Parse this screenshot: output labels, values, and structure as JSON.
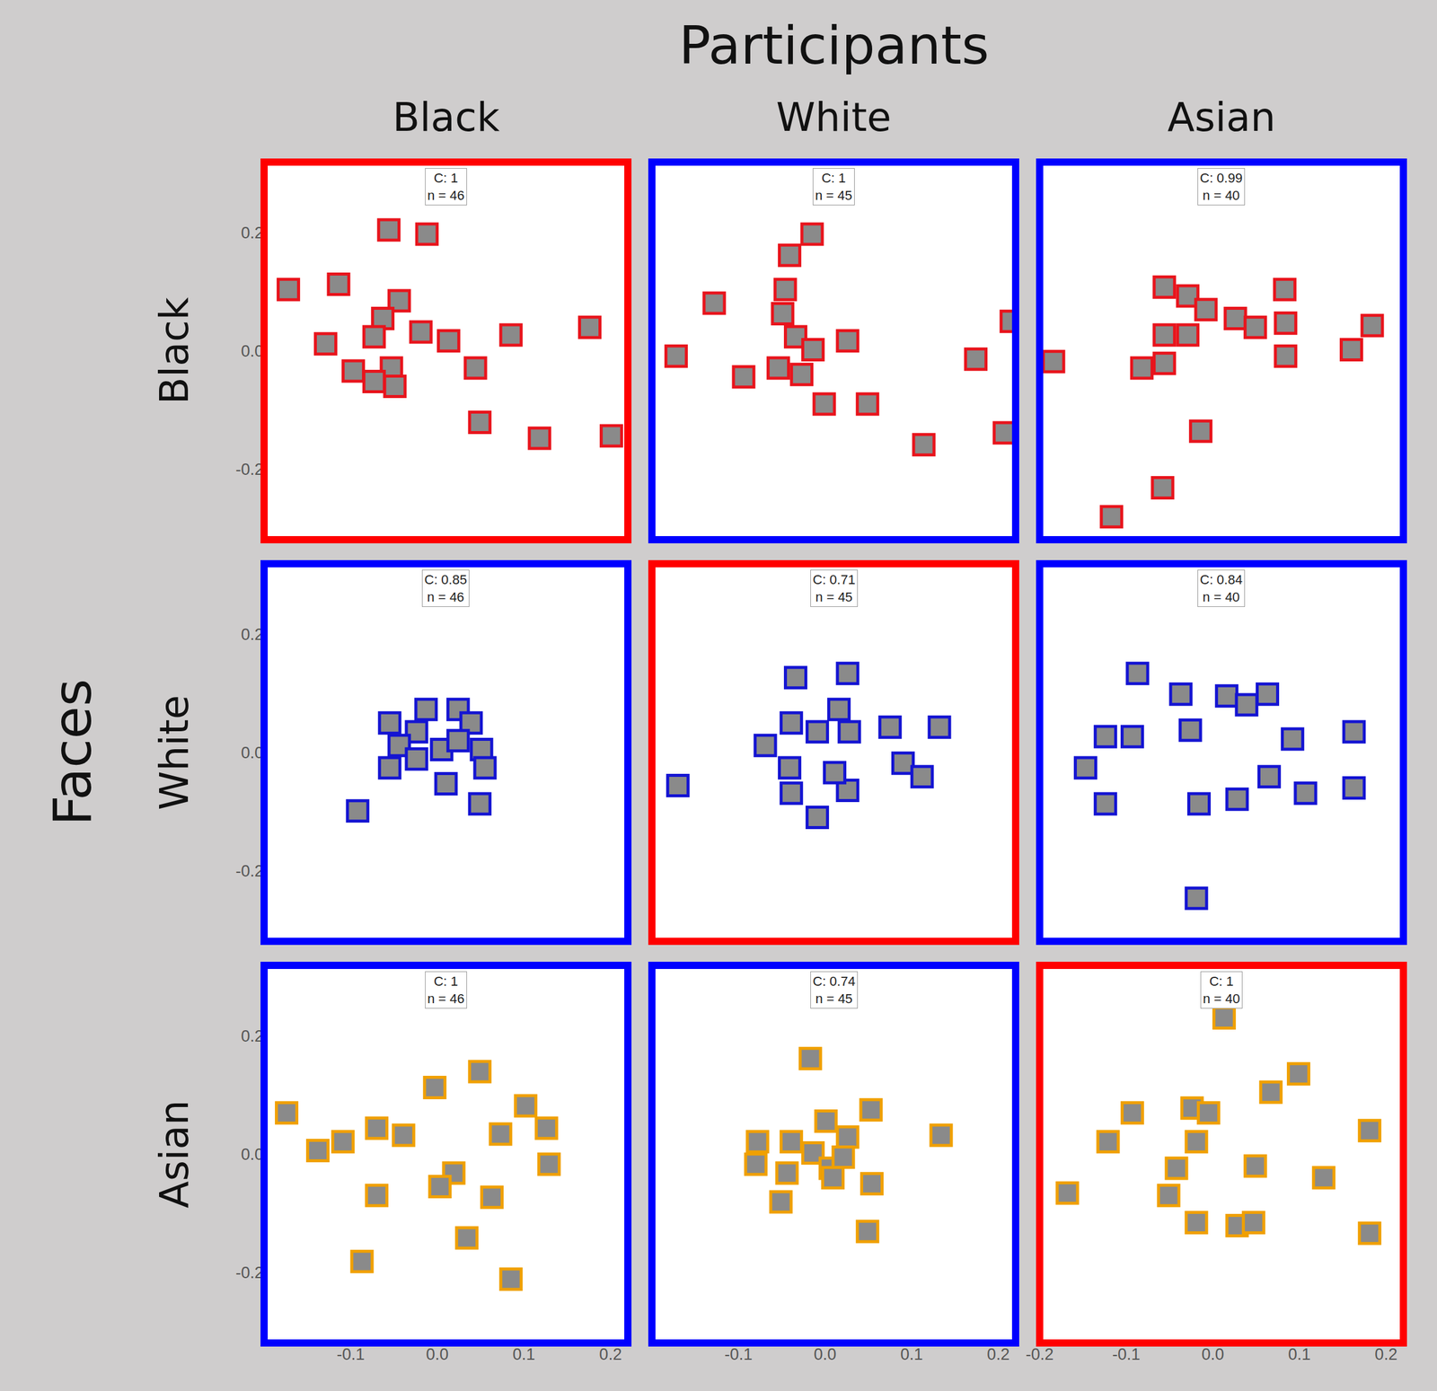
{
  "column_title": "Participants",
  "columns": [
    "Black",
    "White",
    "Asian"
  ],
  "row_title": "Faces",
  "rows": [
    "Black",
    "White",
    "Asian"
  ],
  "chart_data": [
    {
      "type": "scatter",
      "label": [
        "C: 1",
        "n = 46"
      ],
      "color": "#e8141c",
      "marker": "square",
      "xlim": [
        -0.2,
        0.22
      ],
      "ylim": [
        -0.32,
        0.32
      ],
      "xticks": [
        -0.1,
        {
          "value": 0,
          "label": "0.0"
        },
        0.1,
        0.2
      ],
      "yticks": [
        -0.2,
        {
          "value": 0,
          "label": "0.0"
        },
        0.2
      ],
      "tick_labels": "y",
      "x": [
        -0.056,
        -0.012,
        -0.172,
        -0.114,
        -0.044,
        -0.063,
        -0.129,
        -0.073,
        -0.019,
        0.013,
        0.085,
        0.176,
        -0.097,
        -0.053,
        -0.073,
        -0.049,
        0.044,
        0.049,
        0.118,
        0.201
      ],
      "y": [
        0.205,
        0.198,
        0.104,
        0.113,
        0.085,
        0.055,
        0.012,
        0.024,
        0.032,
        0.017,
        0.027,
        0.04,
        -0.034,
        -0.029,
        -0.052,
        -0.06,
        -0.029,
        -0.121,
        -0.148,
        -0.144
      ]
    },
    {
      "type": "scatter",
      "label": [
        "C: 1",
        "n = 45"
      ],
      "color": "#e8141c",
      "marker": "square",
      "xlim": [
        -0.2,
        0.22
      ],
      "ylim": [
        -0.32,
        0.32
      ],
      "xticks": [
        -0.1,
        {
          "value": 0,
          "label": "0.0"
        },
        0.1,
        0.2
      ],
      "yticks": [
        -0.2,
        {
          "value": 0,
          "label": "0.0"
        },
        0.2
      ],
      "tick_labels": false,
      "x": [
        -0.015,
        -0.041,
        -0.128,
        -0.046,
        -0.049,
        -0.034,
        -0.172,
        -0.094,
        -0.054,
        -0.027,
        0.026,
        -0.001,
        0.049,
        0.174,
        0.215,
        0.114,
        0.207,
        -0.014
      ],
      "y": [
        0.198,
        0.162,
        0.081,
        0.104,
        0.063,
        0.024,
        -0.009,
        -0.044,
        -0.029,
        -0.04,
        0.017,
        -0.09,
        -0.09,
        -0.014,
        0.05,
        -0.159,
        -0.139,
        0.002
      ]
    },
    {
      "type": "scatter",
      "label": [
        "C: 0.99",
        "n = 40"
      ],
      "color": "#e8141c",
      "marker": "square",
      "xlim": [
        -0.2,
        0.22
      ],
      "ylim": [
        -0.32,
        0.32
      ],
      "xticks": [
        -0.2,
        -0.1,
        {
          "value": 0,
          "label": "0.0"
        },
        0.1,
        0.2
      ],
      "yticks": [
        -0.2,
        {
          "value": 0,
          "label": "0.0"
        },
        0.2
      ],
      "tick_labels": false,
      "x": [
        -0.056,
        -0.029,
        -0.008,
        0.026,
        0.083,
        0.084,
        0.084,
        -0.056,
        -0.029,
        -0.082,
        -0.056,
        -0.184,
        0.16,
        0.184,
        -0.014,
        -0.058,
        -0.117,
        0.049
      ],
      "y": [
        0.108,
        0.093,
        0.07,
        0.055,
        0.104,
        0.047,
        -0.009,
        0.027,
        0.027,
        -0.029,
        -0.021,
        -0.018,
        0.002,
        0.043,
        -0.136,
        -0.232,
        -0.281,
        0.04
      ]
    },
    {
      "type": "scatter",
      "label": [
        "C: 0.85",
        "n = 46"
      ],
      "color": "#1414d2",
      "marker": "square",
      "xlim": [
        -0.2,
        0.22
      ],
      "ylim": [
        -0.32,
        0.32
      ],
      "xticks": [
        -0.1,
        {
          "value": 0,
          "label": "0.0"
        },
        0.1,
        0.2
      ],
      "yticks": [
        -0.2,
        {
          "value": 0,
          "label": "0.0"
        },
        0.2
      ],
      "tick_labels": "y",
      "x": [
        -0.013,
        0.024,
        -0.055,
        -0.024,
        0.039,
        -0.044,
        0.005,
        0.051,
        -0.055,
        -0.024,
        0.055,
        0.01,
        0.049,
        -0.092,
        0.024
      ],
      "y": [
        0.073,
        0.073,
        0.05,
        0.035,
        0.05,
        0.012,
        0.005,
        0.005,
        -0.026,
        -0.011,
        -0.026,
        -0.053,
        -0.087,
        -0.099,
        0.02
      ]
    },
    {
      "type": "scatter",
      "label": [
        "C: 0.71",
        "n = 45"
      ],
      "color": "#1414d2",
      "marker": "square",
      "xlim": [
        -0.2,
        0.22
      ],
      "ylim": [
        -0.32,
        0.32
      ],
      "xticks": [
        -0.1,
        {
          "value": 0,
          "label": "0.0"
        },
        0.1,
        0.2
      ],
      "yticks": [
        -0.2,
        {
          "value": 0,
          "label": "0.0"
        },
        0.2
      ],
      "tick_labels": false,
      "x": [
        -0.034,
        0.026,
        -0.039,
        0.016,
        -0.009,
        0.028,
        -0.069,
        -0.041,
        -0.039,
        -0.009,
        0.026,
        0.075,
        0.132,
        0.09,
        0.112,
        -0.17,
        0.011
      ],
      "y": [
        0.127,
        0.134,
        0.05,
        0.073,
        0.035,
        0.035,
        0.012,
        -0.026,
        -0.069,
        -0.11,
        -0.064,
        0.043,
        0.043,
        -0.018,
        -0.041,
        -0.056,
        -0.034
      ]
    },
    {
      "type": "scatter",
      "label": [
        "C: 0.84",
        "n = 40"
      ],
      "color": "#1414d2",
      "marker": "square",
      "xlim": [
        -0.2,
        0.22
      ],
      "ylim": [
        -0.32,
        0.32
      ],
      "xticks": [
        -0.2,
        -0.1,
        {
          "value": 0,
          "label": "0.0"
        },
        0.1,
        0.2
      ],
      "yticks": [
        -0.2,
        {
          "value": 0,
          "label": "0.0"
        },
        0.2
      ],
      "tick_labels": false,
      "x": [
        -0.087,
        -0.037,
        0.016,
        0.063,
        0.039,
        -0.026,
        -0.093,
        -0.124,
        -0.147,
        -0.124,
        0.092,
        0.163,
        0.065,
        0.028,
        -0.016,
        0.107,
        0.163,
        -0.019
      ],
      "y": [
        0.134,
        0.099,
        0.096,
        0.099,
        0.081,
        0.038,
        0.027,
        0.027,
        -0.026,
        -0.087,
        0.023,
        0.035,
        -0.041,
        -0.079,
        -0.087,
        -0.069,
        -0.06,
        -0.247
      ]
    },
    {
      "type": "scatter",
      "label": [
        "C: 1",
        "n = 46"
      ],
      "color": "#f0a000",
      "marker": "square",
      "xlim": [
        -0.2,
        0.22
      ],
      "ylim": [
        -0.32,
        0.32
      ],
      "xticks": [
        -0.1,
        {
          "value": 0,
          "label": "0.0"
        },
        0.1,
        0.2
      ],
      "yticks": [
        -0.2,
        {
          "value": 0,
          "label": "0.0"
        },
        0.2
      ],
      "tick_labels": true,
      "x": [
        -0.174,
        -0.003,
        0.049,
        0.102,
        0.126,
        0.073,
        -0.039,
        -0.07,
        -0.109,
        -0.138,
        0.129,
        0.019,
        0.003,
        0.063,
        -0.07,
        0.034,
        -0.087,
        0.085
      ],
      "y": [
        0.07,
        0.113,
        0.14,
        0.082,
        0.044,
        0.034,
        0.032,
        0.044,
        0.021,
        0.006,
        -0.017,
        -0.032,
        -0.055,
        -0.073,
        -0.07,
        -0.142,
        -0.182,
        -0.212
      ]
    },
    {
      "type": "scatter",
      "label": [
        "C: 0.74",
        "n = 45"
      ],
      "color": "#f0a000",
      "marker": "square",
      "xlim": [
        -0.2,
        0.22
      ],
      "ylim": [
        -0.32,
        0.32
      ],
      "xticks": [
        -0.1,
        {
          "value": 0,
          "label": "0.0"
        },
        0.1,
        0.2
      ],
      "yticks": [
        -0.2,
        {
          "value": 0,
          "label": "0.0"
        },
        0.2
      ],
      "tick_labels": "x",
      "x": [
        -0.017,
        0.053,
        0.001,
        0.134,
        -0.078,
        -0.039,
        0.026,
        -0.014,
        -0.08,
        -0.044,
        0.006,
        0.021,
        0.054,
        0.009,
        -0.051,
        0.049
      ],
      "y": [
        0.162,
        0.075,
        0.056,
        0.032,
        0.021,
        0.021,
        0.029,
        0.002,
        -0.017,
        -0.032,
        -0.024,
        -0.005,
        -0.05,
        -0.04,
        -0.081,
        -0.131
      ]
    },
    {
      "type": "scatter",
      "label": [
        "C: 1",
        "n = 40"
      ],
      "color": "#f0a000",
      "marker": "square",
      "xlim": [
        -0.2,
        0.22
      ],
      "ylim": [
        -0.32,
        0.32
      ],
      "xticks": [
        -0.2,
        -0.1,
        {
          "value": 0,
          "label": "0.0"
        },
        0.1,
        0.2
      ],
      "yticks": [
        -0.2,
        {
          "value": 0,
          "label": "0.0"
        },
        0.2
      ],
      "tick_labels": "x",
      "x": [
        0.013,
        0.099,
        0.067,
        -0.093,
        -0.024,
        -0.005,
        -0.121,
        -0.019,
        -0.042,
        0.049,
        0.128,
        0.181,
        -0.168,
        -0.051,
        -0.019,
        0.028,
        0.047,
        0.181
      ],
      "y": [
        0.231,
        0.136,
        0.105,
        0.07,
        0.078,
        0.07,
        0.021,
        0.021,
        -0.024,
        -0.02,
        -0.04,
        0.04,
        -0.066,
        -0.07,
        -0.116,
        -0.121,
        -0.116,
        -0.134
      ]
    }
  ]
}
